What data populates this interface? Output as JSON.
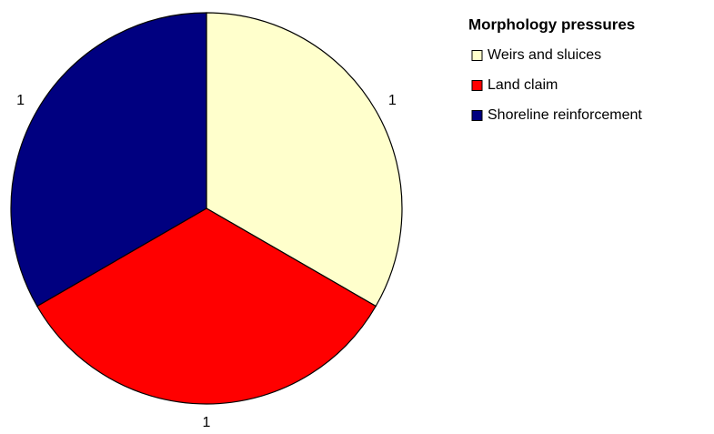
{
  "chart_data": {
    "type": "pie",
    "legend_title": "Morphology pressures",
    "categories": [
      "Weirs and sluices",
      "Land claim",
      "Shoreline reinforcement"
    ],
    "values": [
      1,
      1,
      1
    ],
    "colors": [
      "#ffffcc",
      "#ff0000",
      "#000080"
    ],
    "legend": "top-right"
  }
}
